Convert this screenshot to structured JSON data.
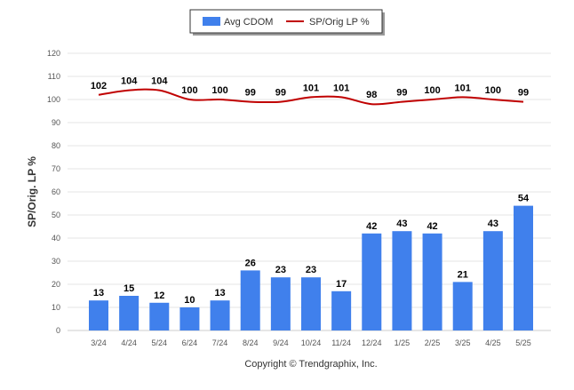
{
  "chart_data": {
    "type": "bar",
    "categories": [
      "3/24",
      "4/24",
      "5/24",
      "6/24",
      "7/24",
      "8/24",
      "9/24",
      "10/24",
      "11/24",
      "12/24",
      "1/25",
      "2/25",
      "3/25",
      "4/25",
      "5/25"
    ],
    "series": [
      {
        "name": "Avg CDOM",
        "type": "bar",
        "color": "#4080ec",
        "values": [
          13,
          15,
          12,
          10,
          13,
          26,
          23,
          23,
          17,
          42,
          43,
          42,
          21,
          43,
          54
        ]
      },
      {
        "name": "SP/Orig LP %",
        "type": "line",
        "color": "#c00000",
        "values": [
          102,
          104,
          104,
          100,
          100,
          99,
          99,
          101,
          101,
          98,
          99,
          100,
          101,
          100,
          99
        ]
      }
    ],
    "ylabel": "SP/Orig. LP %",
    "ylim": [
      0,
      120
    ],
    "yticks": [
      0,
      10,
      20,
      30,
      40,
      50,
      60,
      70,
      80,
      90,
      100,
      110,
      120
    ],
    "legend_position": "top-center",
    "grid": true,
    "footer": "Copyright © Trendgraphix, Inc."
  }
}
